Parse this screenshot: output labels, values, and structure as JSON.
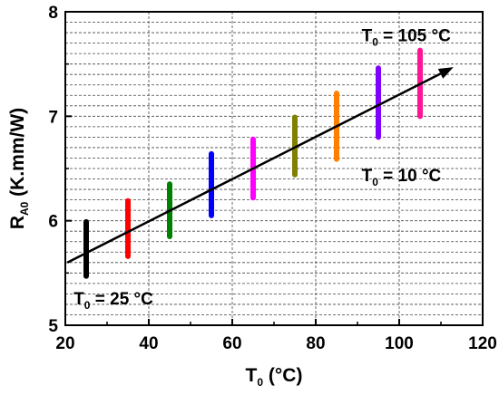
{
  "chart_data": {
    "type": "scatter",
    "xlabel_main": "T",
    "xlabel_sub": "0",
    "xlabel_rest": " (°C)",
    "ylabel_main": "R",
    "ylabel_sub": "A0",
    "ylabel_rest": " (K.mm/W)",
    "xlim": [
      20,
      120
    ],
    "ylim": [
      5,
      8
    ],
    "x_ticks": [
      20,
      40,
      60,
      80,
      100,
      120
    ],
    "y_ticks": [
      5,
      6,
      7,
      8
    ],
    "grid": "horizontal",
    "ranges": [
      {
        "x": 25,
        "low": 5.47,
        "high": 5.99,
        "color": "#000000"
      },
      {
        "x": 35,
        "low": 5.66,
        "high": 6.19,
        "color": "#ff0000"
      },
      {
        "x": 45,
        "low": 5.85,
        "high": 6.35,
        "color": "#008000"
      },
      {
        "x": 55,
        "low": 6.05,
        "high": 6.64,
        "color": "#0000ff"
      },
      {
        "x": 65,
        "low": 6.22,
        "high": 6.78,
        "color": "#ff00ff"
      },
      {
        "x": 75,
        "low": 6.44,
        "high": 6.99,
        "color": "#808000"
      },
      {
        "x": 85,
        "low": 6.59,
        "high": 7.22,
        "color": "#ff8000"
      },
      {
        "x": 95,
        "low": 6.8,
        "high": 7.46,
        "color": "#8000ff"
      },
      {
        "x": 105,
        "low": 7.0,
        "high": 7.63,
        "color": "#ff1493"
      }
    ],
    "trend_arrow": {
      "x_start": 20.5,
      "y_start": 5.6,
      "x_end": 113,
      "y_end": 7.47,
      "color": "#000000"
    },
    "annotations": [
      {
        "main": "T",
        "sub": "0",
        "rest": " = 105 °C",
        "x": 91,
        "y": 7.72
      },
      {
        "main": "T",
        "sub": "0",
        "rest": " = 10 °C",
        "x": 91,
        "y": 6.38
      },
      {
        "main": "T",
        "sub": "0",
        "rest": " = 25 °C",
        "x": 22,
        "y": 5.2
      }
    ]
  }
}
